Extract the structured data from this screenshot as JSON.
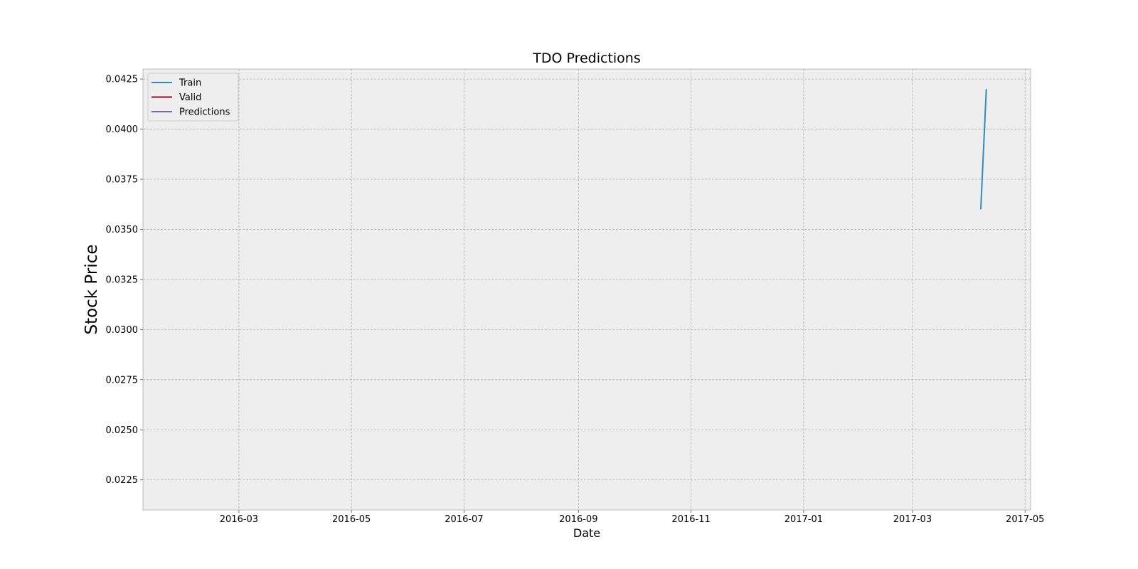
{
  "chart_data": {
    "type": "line",
    "title": "TDO Predictions",
    "xlabel": "Date",
    "ylabel": "Stock Price",
    "xlim": [
      "2016-01-09",
      "2017-05-04"
    ],
    "ylim": [
      0.021,
      0.043
    ],
    "x_ticks": [
      "2016-03-01",
      "2016-05-01",
      "2016-07-01",
      "2016-09-01",
      "2016-11-01",
      "2017-01-01",
      "2017-03-01",
      "2017-05-01"
    ],
    "x_tick_labels": [
      "2016-03",
      "2016-05",
      "2016-07",
      "2016-09",
      "2016-11",
      "2017-01",
      "2017-03",
      "2017-05"
    ],
    "y_ticks": [
      0.0225,
      0.025,
      0.0275,
      0.03,
      0.0325,
      0.035,
      0.0375,
      0.04,
      0.0425
    ],
    "y_tick_labels": [
      "0.0225",
      "0.0250",
      "0.0275",
      "0.0300",
      "0.0325",
      "0.0350",
      "0.0375",
      "0.0400",
      "0.0425"
    ],
    "grid": true,
    "legend_position": "top-left",
    "series": [
      {
        "name": "Train",
        "color": "#348ABD",
        "x": [
          "2017-04-07",
          "2017-04-10"
        ],
        "y": [
          0.036,
          0.042
        ]
      },
      {
        "name": "Valid",
        "color": "#A60628",
        "x": [],
        "y": []
      },
      {
        "name": "Predictions",
        "color": "#7A68A6",
        "x": [],
        "y": []
      }
    ],
    "colors": {
      "plot_background": "#EEEEEE",
      "axes_edge": "#BCBCBC",
      "grid": "#B0B0B0"
    }
  }
}
